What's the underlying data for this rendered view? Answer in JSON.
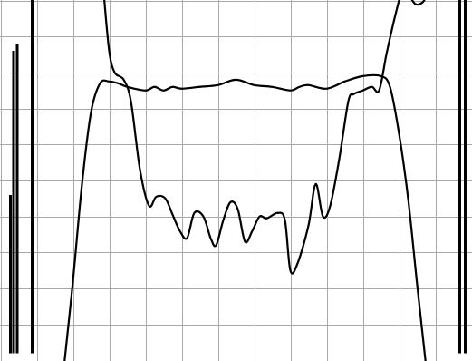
{
  "chart_data": {
    "type": "line",
    "title": "",
    "xlabel": "",
    "ylabel": "",
    "grid": true,
    "grid_divisions": {
      "x": 13,
      "y": 10
    },
    "xlim": [
      0,
      13
    ],
    "ylim": [
      0,
      10
    ],
    "colors": {
      "background": "#ffffff",
      "grid": "#a9a9a9",
      "trace": "#000000"
    },
    "series": [
      {
        "points": [
          [
            1.75,
            -0.2
          ],
          [
            2.0,
            2.2
          ],
          [
            2.25,
            4.9
          ],
          [
            2.5,
            6.9
          ],
          [
            2.75,
            7.7
          ],
          [
            3.0,
            7.75
          ],
          [
            3.25,
            7.7
          ],
          [
            3.5,
            7.6
          ],
          [
            4.0,
            7.5
          ],
          [
            4.25,
            7.6
          ],
          [
            4.5,
            7.5
          ],
          [
            4.75,
            7.6
          ],
          [
            5.0,
            7.55
          ],
          [
            5.5,
            7.6
          ],
          [
            6.0,
            7.65
          ],
          [
            6.5,
            7.8
          ],
          [
            7.0,
            7.65
          ],
          [
            7.5,
            7.6
          ],
          [
            8.0,
            7.5
          ],
          [
            8.25,
            7.6
          ],
          [
            8.5,
            7.65
          ],
          [
            9.0,
            7.55
          ],
          [
            9.5,
            7.75
          ],
          [
            10.0,
            7.9
          ],
          [
            10.5,
            7.9
          ],
          [
            10.75,
            7.6
          ],
          [
            11.0,
            6.3
          ],
          [
            11.25,
            4.5
          ],
          [
            11.5,
            2.1
          ],
          [
            11.75,
            -0.2
          ]
        ]
      },
      {
        "points": [
          [
            2.85,
            10.2
          ],
          [
            3.0,
            8.6
          ],
          [
            3.15,
            8.0
          ],
          [
            3.4,
            7.8
          ],
          [
            3.6,
            7.2
          ],
          [
            3.85,
            5.3
          ],
          [
            4.1,
            4.3
          ],
          [
            4.3,
            4.55
          ],
          [
            4.55,
            4.5
          ],
          [
            4.75,
            4.05
          ],
          [
            4.95,
            3.6
          ],
          [
            5.15,
            3.4
          ],
          [
            5.35,
            4.1
          ],
          [
            5.6,
            4.0
          ],
          [
            5.8,
            3.4
          ],
          [
            5.95,
            3.2
          ],
          [
            6.15,
            3.9
          ],
          [
            6.35,
            4.4
          ],
          [
            6.55,
            4.2
          ],
          [
            6.75,
            3.3
          ],
          [
            6.95,
            3.6
          ],
          [
            7.15,
            4.0
          ],
          [
            7.35,
            3.95
          ],
          [
            7.65,
            4.1
          ],
          [
            7.85,
            3.9
          ],
          [
            8.0,
            2.5
          ],
          [
            8.2,
            2.7
          ],
          [
            8.5,
            3.75
          ],
          [
            8.7,
            4.9
          ],
          [
            8.9,
            4.0
          ],
          [
            9.1,
            4.3
          ],
          [
            9.35,
            5.6
          ],
          [
            9.6,
            7.2
          ],
          [
            9.75,
            7.4
          ],
          [
            10.0,
            7.5
          ],
          [
            10.25,
            7.6
          ],
          [
            10.45,
            7.5
          ],
          [
            10.65,
            8.5
          ],
          [
            10.85,
            9.4
          ],
          [
            11.05,
            10.2
          ]
        ]
      },
      {
        "points": [
          [
            11.25,
            10.2
          ],
          [
            11.45,
            9.9
          ],
          [
            11.65,
            9.95
          ],
          [
            11.8,
            10.2
          ]
        ]
      }
    ],
    "edge_traces": [
      {
        "x": 0.28,
        "from": 0.2,
        "to": 4.6
      },
      {
        "x": 0.36,
        "from": 0.2,
        "to": 8.6
      },
      {
        "x": 0.46,
        "from": 0.2,
        "to": 8.8
      },
      {
        "x": 0.88,
        "from": 0.2,
        "to": 10.2
      },
      {
        "x": 12.68,
        "from": 0.2,
        "to": 10.2
      },
      {
        "x": 12.82,
        "from": 0.2,
        "to": 10.2
      }
    ]
  }
}
